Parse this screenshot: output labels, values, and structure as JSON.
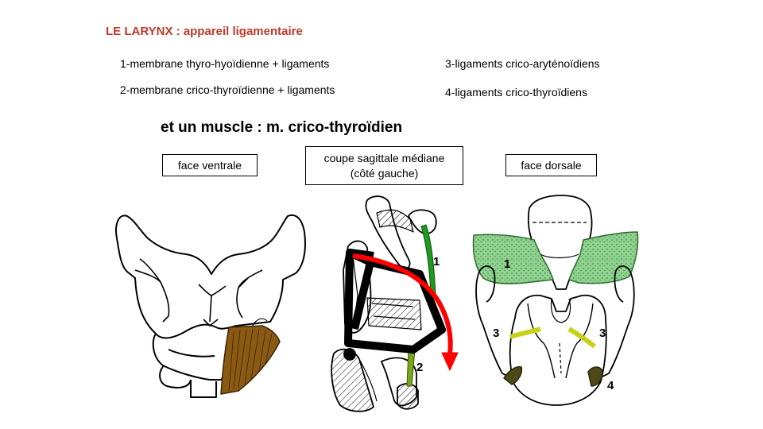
{
  "title": "LE LARYNX : appareil ligamentaire",
  "legend": {
    "item1": "1-membrane thyro-hyoïdienne  + ligaments",
    "item2": "2-membrane crico-thyroïdienne  + ligaments",
    "item3": "3-ligaments crico-aryténoïdiens",
    "item4": "4-ligaments crico-thyroïdiens"
  },
  "muscle_line": "et un muscle  : m. crico-thyroïdien",
  "views": {
    "ventral": "face ventrale",
    "sagittal_line1": "coupe sagittale médiane",
    "sagittal_line2": "(côté gauche)",
    "dorsal": "face dorsale"
  },
  "markers": {
    "sagittal_1": "1",
    "sagittal_2": "2",
    "dorsal_1": "1",
    "dorsal_3_left": "3",
    "dorsal_3_right": "3",
    "dorsal_4": "4"
  },
  "colors": {
    "title": "#c0392b",
    "muscle": "#8b5a12",
    "membrane_green": "#8fd18f",
    "ligament_green": "#1f9a1f",
    "ligament_olive": "#7aa61a",
    "crico_arytenoid_yellow": "#c8d11a",
    "crico_thyroid_dark": "#4d4a1a",
    "arrow_red": "#ff0000"
  }
}
